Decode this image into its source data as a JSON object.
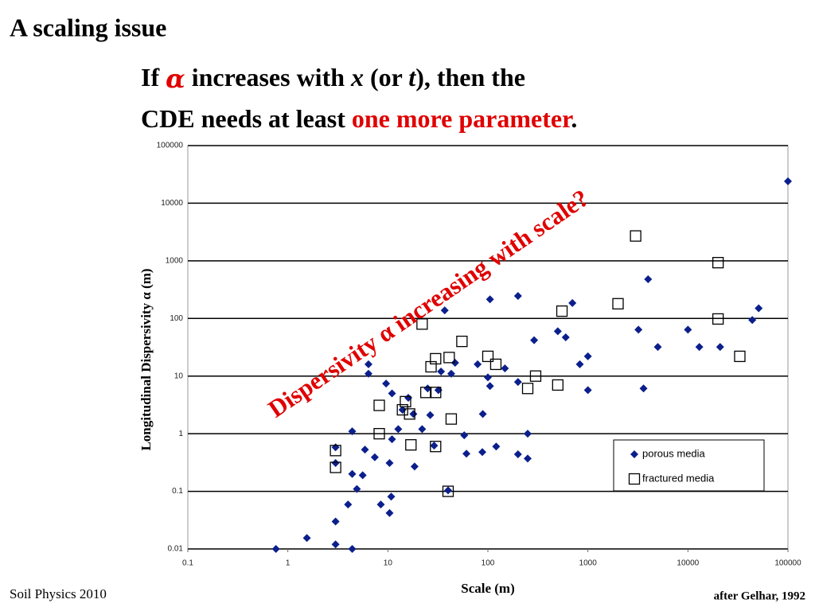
{
  "slide_title": "A scaling issue",
  "heading": {
    "line1": [
      "If ",
      "α",
      " increases with ",
      "x",
      " (or ",
      "t",
      "), then the"
    ],
    "line2": [
      "CDE needs at least ",
      "one more parameter",
      "."
    ]
  },
  "footer_left": "Soil Physics 2010",
  "footer_right": "after Gelhar, 1992",
  "chart_data": {
    "type": "scatter",
    "xlabel": "Scale (m)",
    "ylabel": "Longitudinal Dispersivity α (m)",
    "annotation": "Dispersivity α increasing with scale?",
    "xscale": "log",
    "yscale": "log",
    "xlim": [
      0.1,
      100000
    ],
    "ylim": [
      0.01,
      100000
    ],
    "xticks": [
      0.1,
      1,
      10,
      100,
      1000,
      10000,
      100000
    ],
    "yticks": [
      0.01,
      0.1,
      1,
      10,
      100,
      1000,
      10000,
      100000
    ],
    "grid": true,
    "legend": "lower-right",
    "series": [
      {
        "name": "porous media",
        "color": "#0b1f8c",
        "marker": "diamond",
        "x": [
          0.76,
          1.55,
          3,
          3,
          3,
          3,
          4,
          4.4,
          4.4,
          4.4,
          4.9,
          5.6,
          5.9,
          6.4,
          6.4,
          7.4,
          8.5,
          9.6,
          10.4,
          10.8,
          10.4,
          11,
          11,
          12.7,
          14,
          16,
          18,
          18.5,
          22,
          25,
          26.5,
          29,
          32,
          34,
          37,
          40,
          43,
          47,
          58,
          61,
          79,
          89,
          88,
          100,
          105,
          105,
          121,
          148,
          200,
          200,
          200,
          250,
          250,
          290,
          500,
          600,
          700,
          830,
          1000,
          1000,
          3200,
          3600,
          4000,
          5000,
          10000,
          13000,
          21000,
          44000,
          51000,
          100000
        ],
        "values": [
          0.01,
          0.0155,
          0.012,
          0.03,
          0.31,
          0.58,
          0.059,
          0.01,
          1.1,
          0.2,
          0.11,
          0.19,
          0.53,
          11,
          16,
          0.39,
          0.059,
          7.4,
          0.042,
          0.081,
          0.31,
          5,
          0.8,
          1.2,
          2.6,
          4.2,
          2.2,
          0.27,
          1.2,
          6.1,
          2.1,
          0.62,
          5.7,
          12,
          138,
          0.104,
          11,
          17,
          0.94,
          0.45,
          16,
          2.2,
          0.48,
          9.5,
          215,
          6.7,
          0.6,
          13.6,
          246,
          7.9,
          0.44,
          1,
          0.37,
          42,
          60,
          47,
          185,
          16,
          5.7,
          22,
          64,
          6.1,
          480,
          32,
          64,
          32,
          32,
          94,
          150,
          24000
        ]
      },
      {
        "name": "fractured media",
        "color": "#000000",
        "marker": "square",
        "x": [
          3,
          3,
          8.2,
          8.2,
          14,
          15,
          16.5,
          17,
          22,
          24,
          27,
          30,
          30,
          30,
          41,
          43,
          40,
          55,
          100,
          120,
          250,
          300,
          500,
          550,
          2000,
          3000,
          20000,
          20000,
          33000
        ],
        "values": [
          0.26,
          0.51,
          3.1,
          1,
          2.6,
          3.6,
          2.2,
          0.64,
          80,
          5.2,
          14.5,
          5.2,
          20,
          0.6,
          21,
          1.8,
          0.1,
          40,
          22,
          16,
          6.1,
          10,
          7,
          134,
          180,
          2700,
          930,
          98,
          22
        ]
      }
    ]
  }
}
